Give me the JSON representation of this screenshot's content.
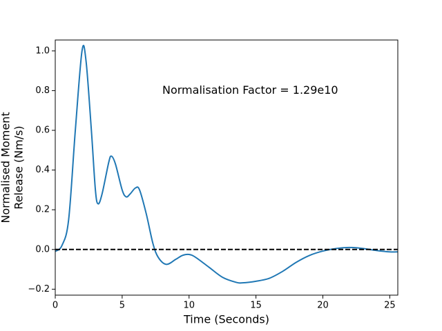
{
  "chart_data": {
    "type": "line",
    "xlabel": "Time (Seconds)",
    "ylabel": [
      "Normalised Moment",
      "Release (Nm/s)"
    ],
    "annotation": {
      "text": "Normalisation Factor = 1.29e10",
      "x": 8,
      "y": 0.8
    },
    "x": [
      0,
      0.5,
      1.0,
      1.5,
      2.0,
      2.3,
      2.7,
      3.0,
      3.2,
      3.5,
      4.0,
      4.2,
      4.5,
      5.0,
      5.3,
      5.6,
      6.0,
      6.3,
      6.8,
      7.3,
      7.7,
      8.3,
      9.0,
      9.5,
      10.0,
      10.5,
      11.5,
      12.5,
      13.5,
      14.0,
      15.0,
      16.0,
      17.0,
      18.0,
      19.0,
      20.0,
      21.0,
      22.0,
      23.0,
      24.0,
      25.0,
      25.6
    ],
    "series": [
      {
        "color": "#1f77b4",
        "values": [
          -0.01,
          0.02,
          0.15,
          0.6,
          1.0,
          0.95,
          0.6,
          0.3,
          0.23,
          0.28,
          0.44,
          0.47,
          0.43,
          0.3,
          0.265,
          0.28,
          0.31,
          0.3,
          0.18,
          0.03,
          -0.04,
          -0.075,
          -0.05,
          -0.03,
          -0.025,
          -0.04,
          -0.09,
          -0.14,
          -0.165,
          -0.168,
          -0.16,
          -0.145,
          -0.11,
          -0.065,
          -0.03,
          -0.008,
          0.005,
          0.01,
          0.005,
          -0.005,
          -0.012,
          -0.012
        ]
      }
    ],
    "hline": {
      "y": 0,
      "color": "#000000",
      "style": "dashed"
    },
    "xlim": [
      0,
      25.6
    ],
    "ylim": [
      -0.23,
      1.055
    ],
    "xticks": [
      0,
      5,
      10,
      15,
      20,
      25
    ],
    "yticks": [
      {
        "value": -0.2,
        "label": "−0.2"
      },
      {
        "value": 0.0,
        "label": "0.0"
      },
      0.2,
      0.4,
      0.6,
      {
        "value": 0.8,
        "label": "0.8"
      },
      {
        "value": 1.0,
        "label": "1.0"
      }
    ]
  }
}
